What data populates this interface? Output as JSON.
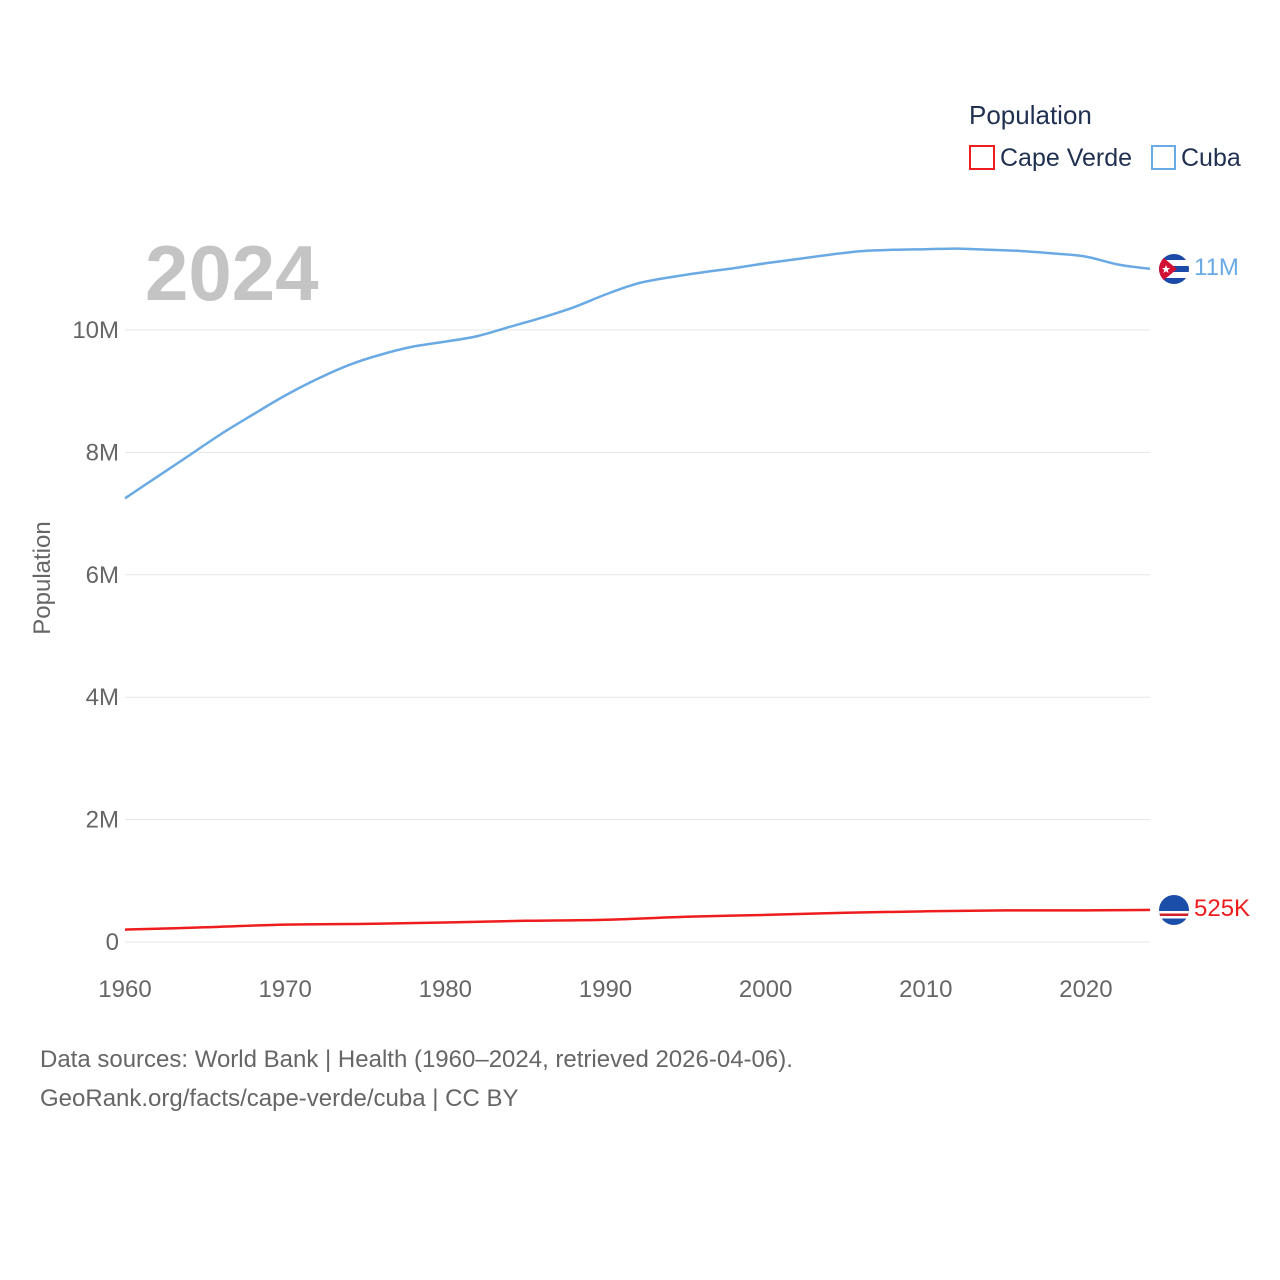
{
  "chart_data": {
    "type": "line",
    "title": "",
    "current_year": "2024",
    "xlabel": "",
    "ylabel": "Population",
    "xlim": [
      1960,
      2024
    ],
    "ylim": [
      0,
      12000000
    ],
    "x_ticks": [
      1960,
      1970,
      1980,
      1990,
      2000,
      2010,
      2020
    ],
    "x_tick_labels": [
      "1960",
      "1970",
      "1980",
      "1990",
      "2000",
      "2010",
      "2020"
    ],
    "y_ticks": [
      0,
      2000000,
      4000000,
      6000000,
      8000000,
      10000000
    ],
    "y_tick_labels": [
      "0",
      "2M",
      "4M",
      "6M",
      "8M",
      "10M"
    ],
    "legend": {
      "title": "Population",
      "placement": "top-right",
      "entries": [
        "Cape Verde",
        "Cuba"
      ]
    },
    "series": [
      {
        "name": "Cuba",
        "color": "#6aaae4",
        "end_label": "11M",
        "flag": "cuba-flag",
        "x": [
          1960,
          1962,
          1964,
          1966,
          1968,
          1970,
          1972,
          1974,
          1976,
          1978,
          1980,
          1982,
          1984,
          1986,
          1988,
          1990,
          1992,
          1994,
          1996,
          1998,
          2000,
          2002,
          2004,
          2006,
          2008,
          2010,
          2012,
          2014,
          2016,
          2018,
          2020,
          2022,
          2024
        ],
        "values": [
          7250000,
          7600000,
          7950000,
          8300000,
          8620000,
          8930000,
          9200000,
          9430000,
          9600000,
          9730000,
          9810000,
          9900000,
          10050000,
          10200000,
          10370000,
          10580000,
          10760000,
          10860000,
          10940000,
          11010000,
          11090000,
          11160000,
          11230000,
          11290000,
          11310000,
          11320000,
          11330000,
          11310000,
          11290000,
          11250000,
          11200000,
          11070000,
          11000000
        ]
      },
      {
        "name": "Cape Verde",
        "color": "#ee1c1c",
        "end_label": "525K",
        "flag": "cape-verde-flag",
        "x": [
          1960,
          1965,
          1970,
          1975,
          1980,
          1985,
          1990,
          1995,
          2000,
          2005,
          2010,
          2015,
          2020,
          2024
        ],
        "values": [
          202000,
          240000,
          285000,
          296000,
          319000,
          346000,
          364000,
          411000,
          443000,
          479000,
          502000,
          516000,
          516000,
          525000
        ]
      }
    ]
  },
  "footer": {
    "source": "Data sources: World Bank | Health (1960–2024, retrieved 2026-04-06).",
    "link": "GeoRank.org/facts/cape-verde/cuba | CC BY"
  }
}
